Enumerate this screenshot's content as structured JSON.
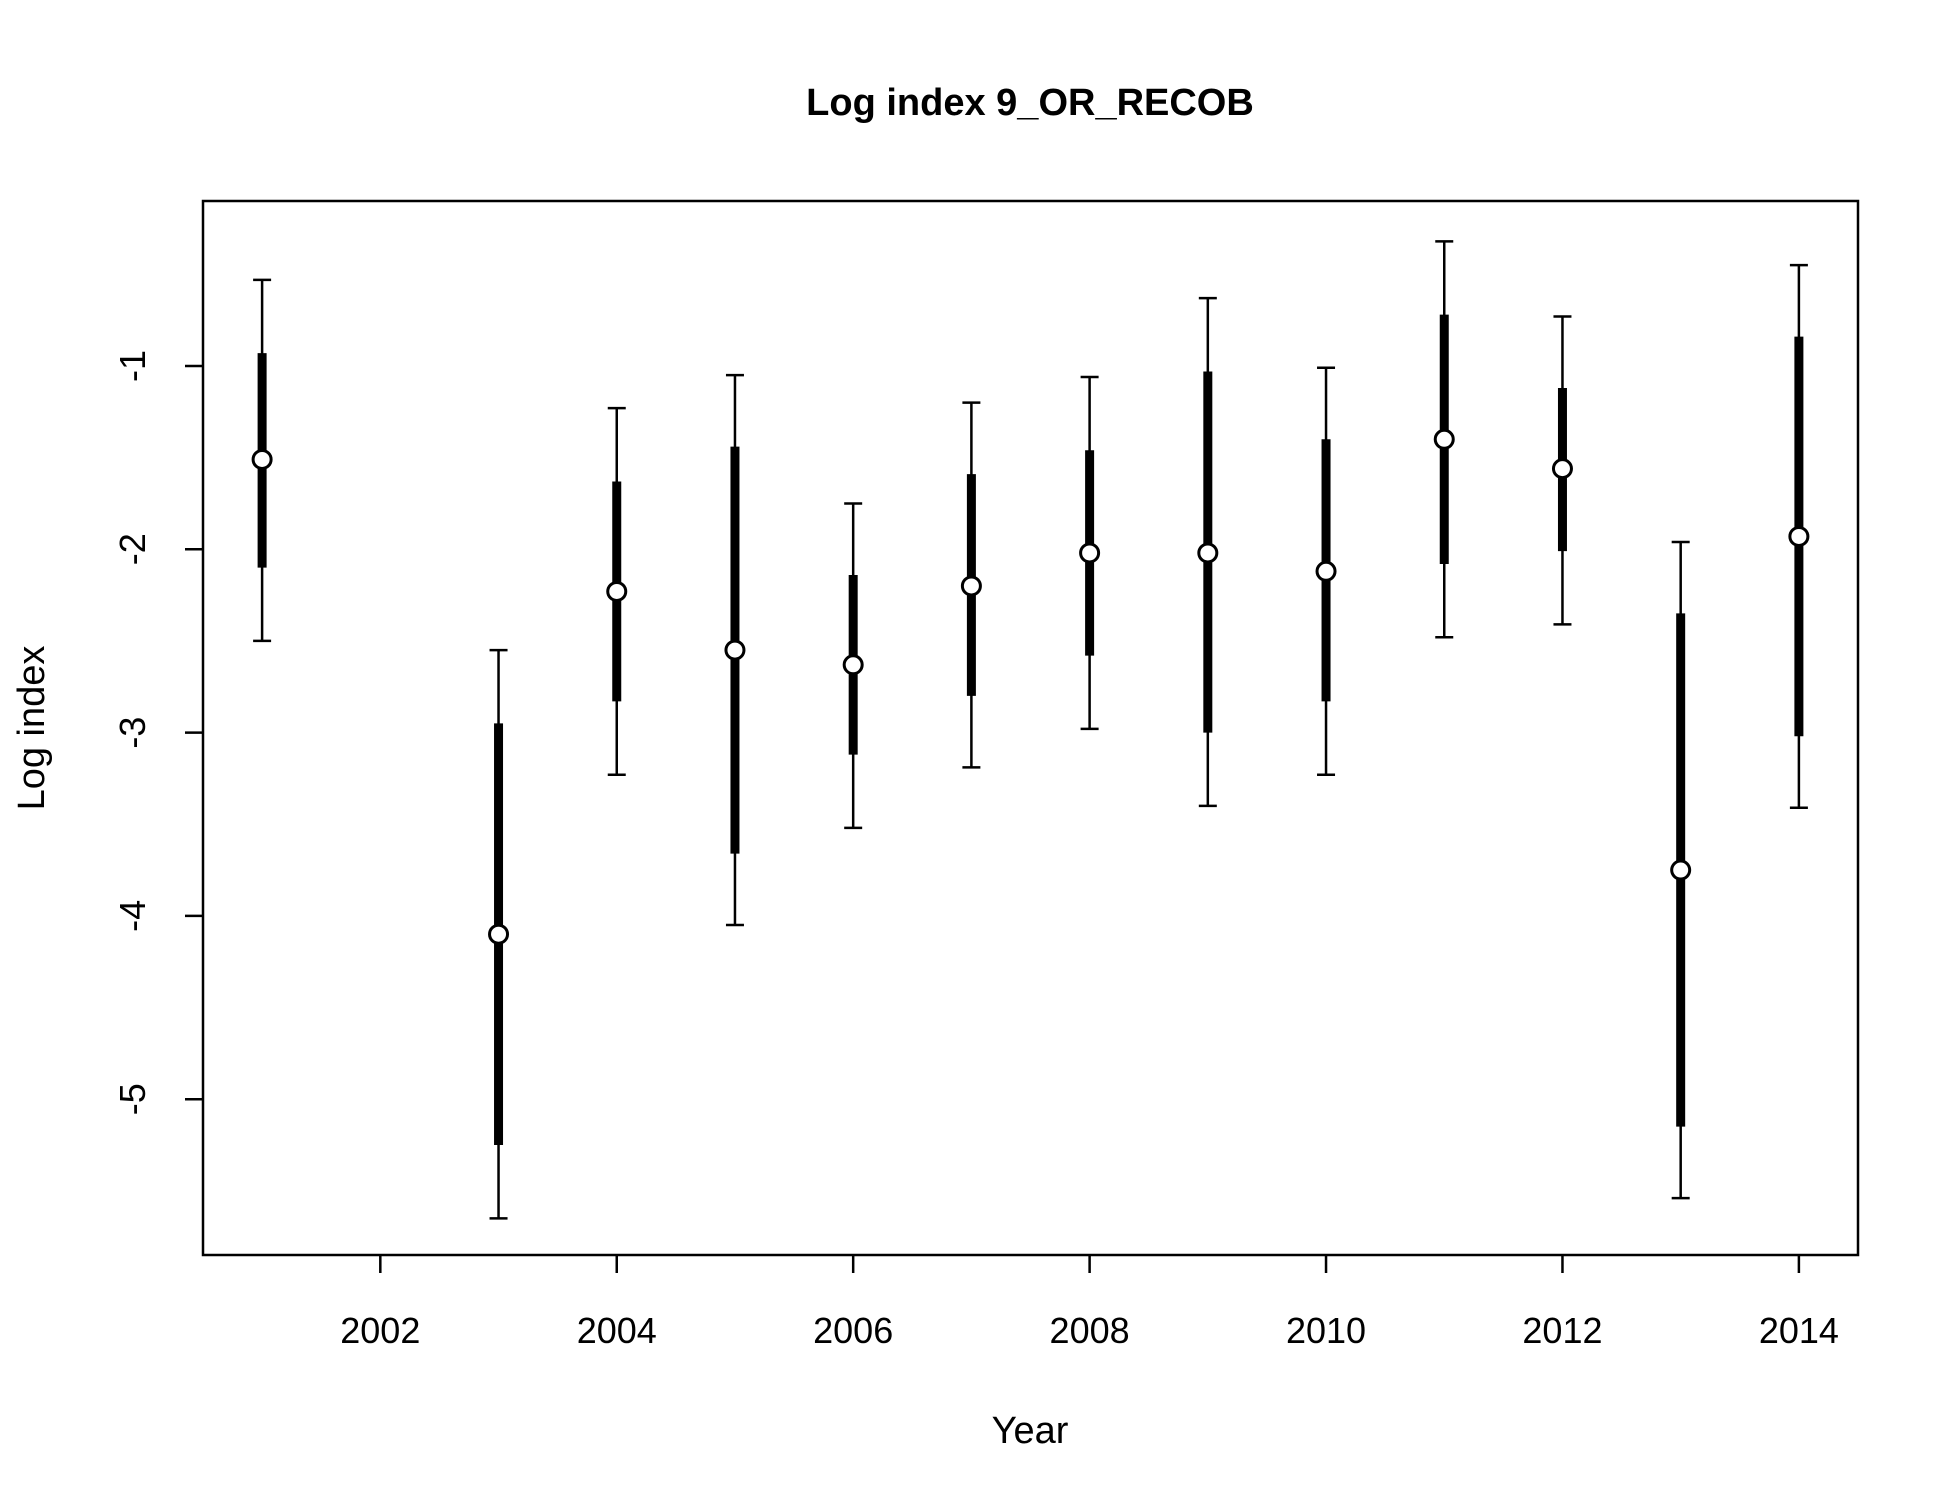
{
  "chart_data": {
    "type": "scatter",
    "title": "Log index 9_OR_RECOB",
    "xlabel": "Year",
    "ylabel": "Log index",
    "xlim": [
      2000.5,
      2014.5
    ],
    "ylim": [
      -5.85,
      -0.1
    ],
    "x_ticks": [
      2002,
      2004,
      2006,
      2008,
      2010,
      2012,
      2014
    ],
    "y_ticks": [
      -5,
      -4,
      -3,
      -2,
      -1
    ],
    "grid": false,
    "legend": "none",
    "colors": {
      "line": "#000000",
      "point_fill": "#ffffff"
    },
    "points": [
      {
        "year": 2001,
        "value": -1.51,
        "inner_low": -2.1,
        "inner_high": -0.93,
        "outer_low": -2.5,
        "outer_high": -0.53
      },
      {
        "year": 2003,
        "value": -4.1,
        "inner_low": -5.25,
        "inner_high": -2.95,
        "outer_low": -5.65,
        "outer_high": -2.55
      },
      {
        "year": 2004,
        "value": -2.23,
        "inner_low": -2.83,
        "inner_high": -1.63,
        "outer_low": -3.23,
        "outer_high": -1.23
      },
      {
        "year": 2005,
        "value": -2.55,
        "inner_low": -3.66,
        "inner_high": -1.44,
        "outer_low": -4.05,
        "outer_high": -1.05
      },
      {
        "year": 2006,
        "value": -2.63,
        "inner_low": -3.12,
        "inner_high": -2.14,
        "outer_low": -3.52,
        "outer_high": -1.75
      },
      {
        "year": 2007,
        "value": -2.2,
        "inner_low": -2.8,
        "inner_high": -1.59,
        "outer_low": -3.19,
        "outer_high": -1.2
      },
      {
        "year": 2008,
        "value": -2.02,
        "inner_low": -2.58,
        "inner_high": -1.46,
        "outer_low": -2.98,
        "outer_high": -1.06
      },
      {
        "year": 2009,
        "value": -2.02,
        "inner_low": -3.0,
        "inner_high": -1.03,
        "outer_low": -3.4,
        "outer_high": -0.63
      },
      {
        "year": 2010,
        "value": -2.12,
        "inner_low": -2.83,
        "inner_high": -1.4,
        "outer_low": -3.23,
        "outer_high": -1.01
      },
      {
        "year": 2011,
        "value": -1.4,
        "inner_low": -2.08,
        "inner_high": -0.72,
        "outer_low": -2.48,
        "outer_high": -0.32
      },
      {
        "year": 2012,
        "value": -1.56,
        "inner_low": -2.01,
        "inner_high": -1.12,
        "outer_low": -2.41,
        "outer_high": -0.73
      },
      {
        "year": 2013,
        "value": -3.75,
        "inner_low": -5.15,
        "inner_high": -2.35,
        "outer_low": -5.54,
        "outer_high": -1.96
      },
      {
        "year": 2014,
        "value": -1.93,
        "inner_low": -3.02,
        "inner_high": -0.84,
        "outer_low": -3.41,
        "outer_high": -0.45
      }
    ]
  }
}
